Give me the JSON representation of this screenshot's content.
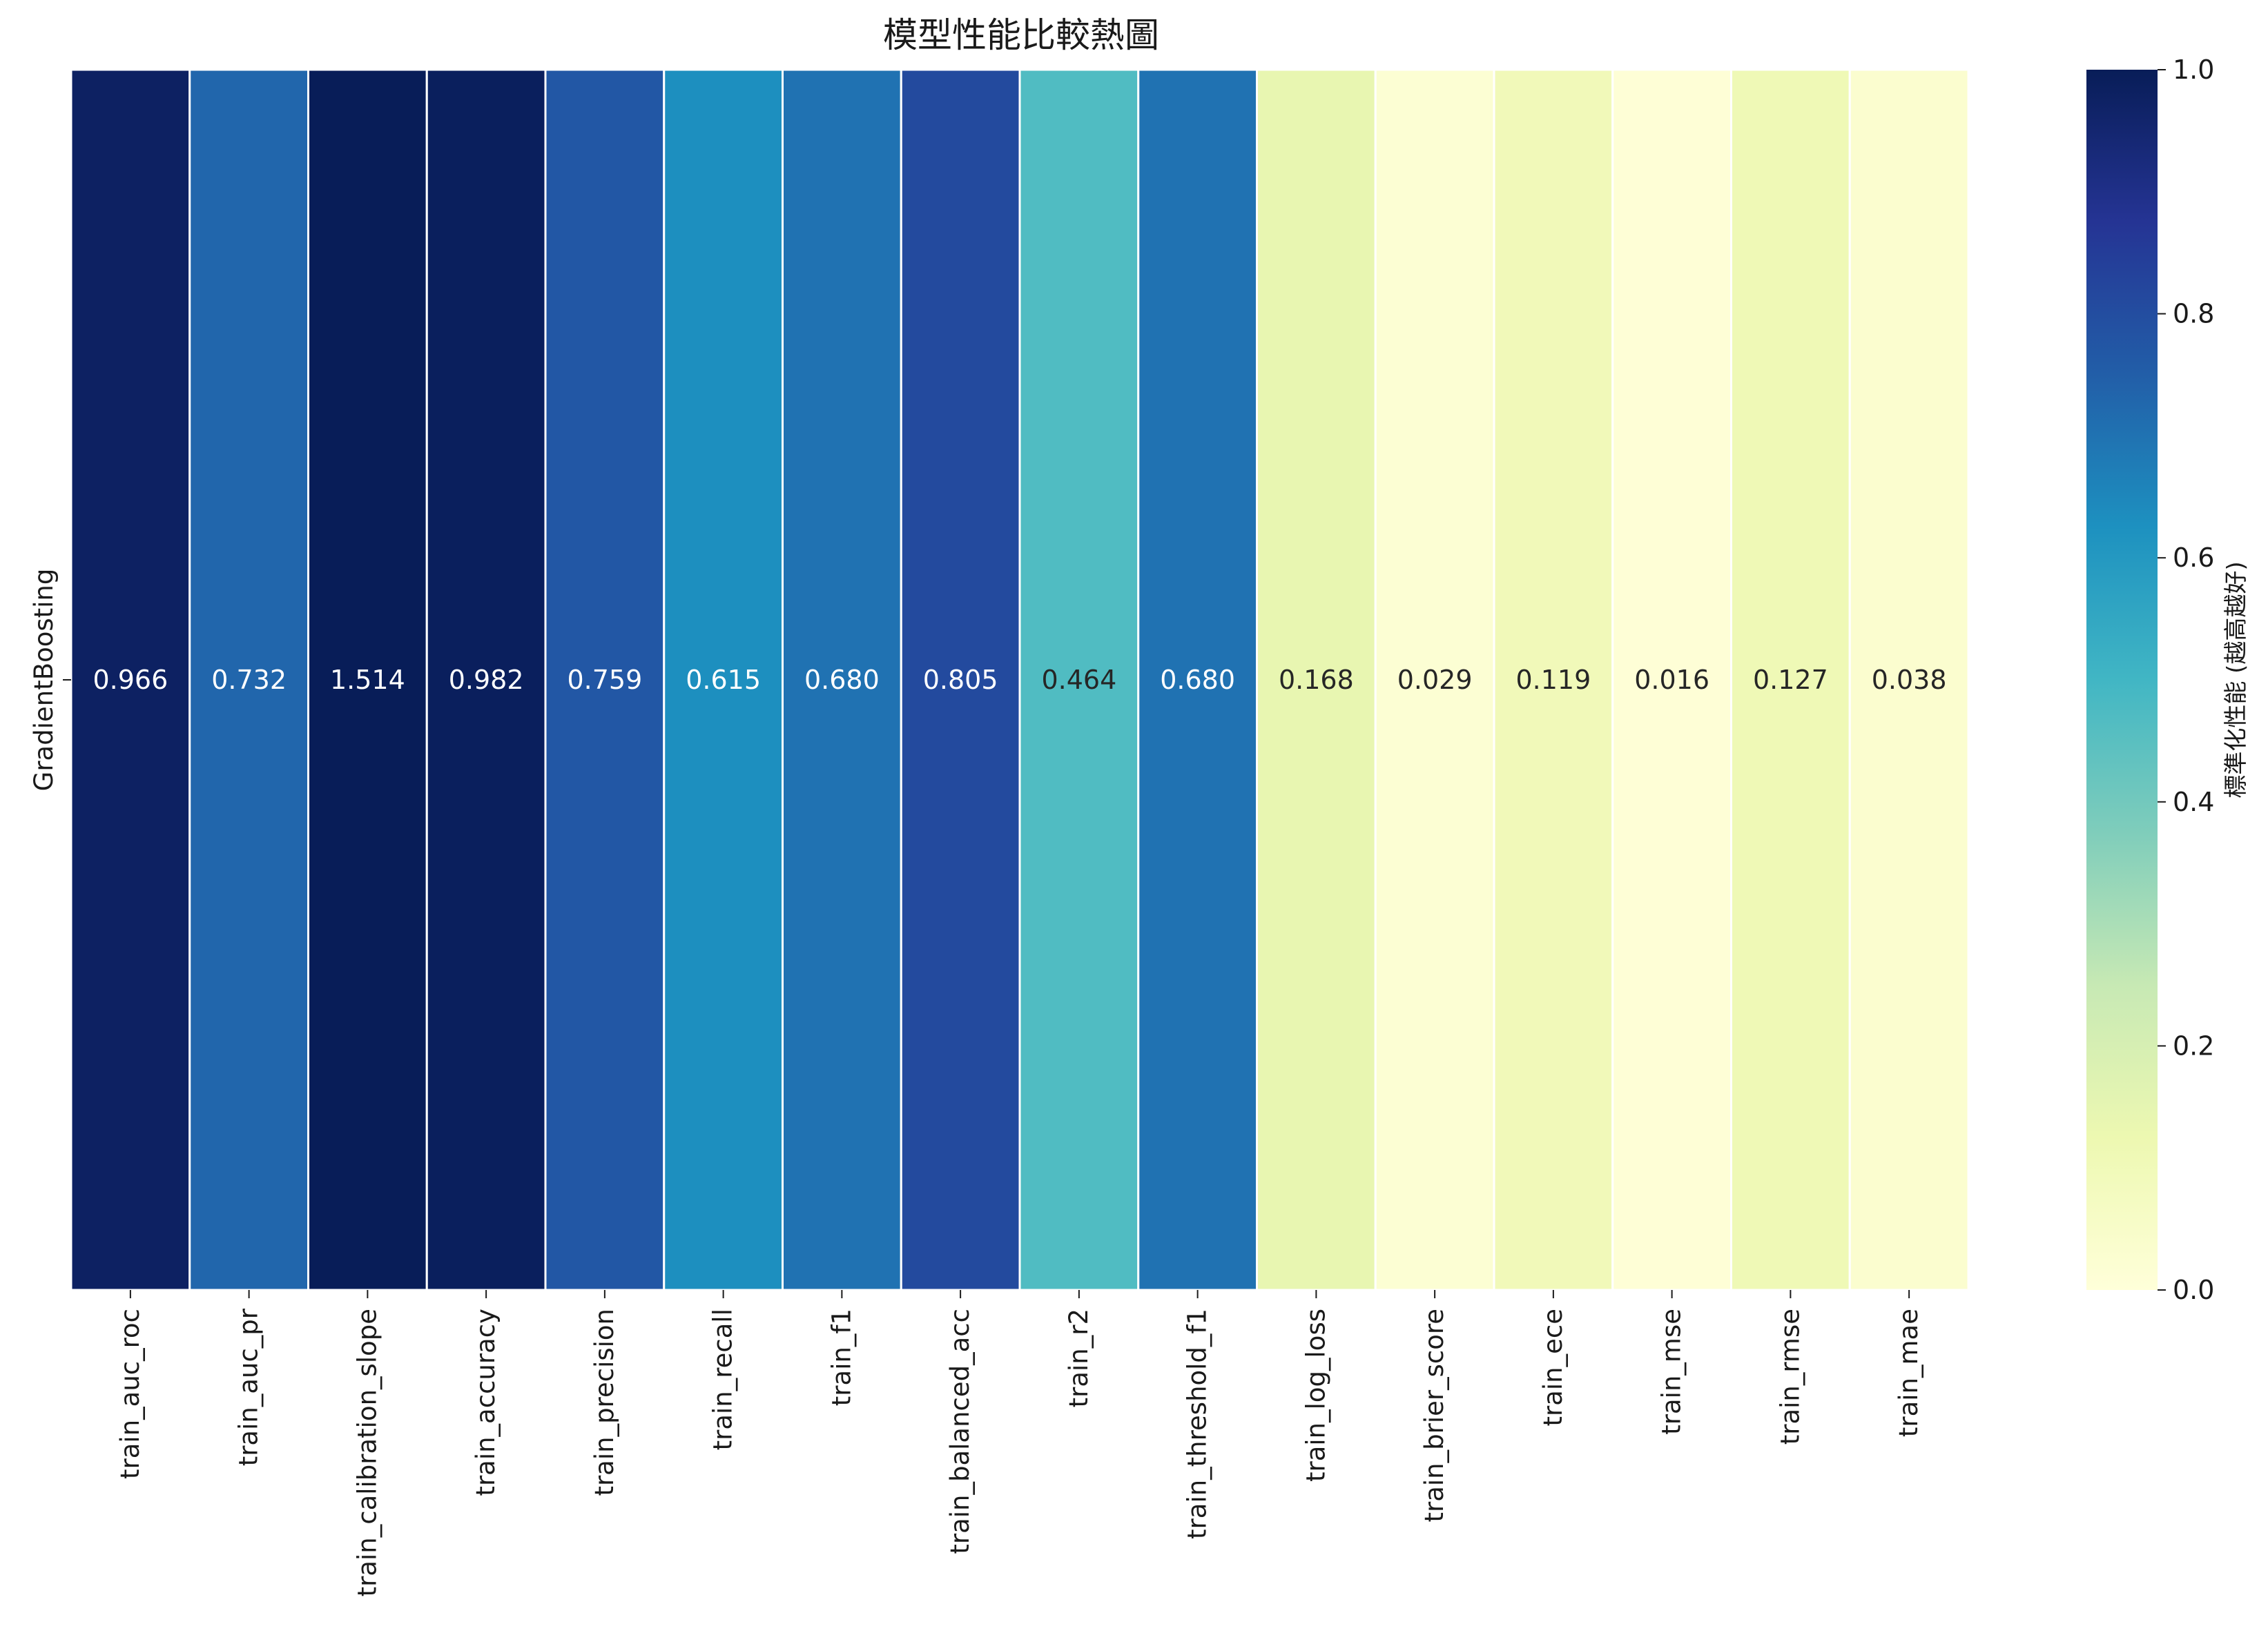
{
  "chart_data": {
    "type": "heatmap",
    "title": "模型性能比較熱圖",
    "rows": [
      "GradientBoosting"
    ],
    "columns": [
      "train_auc_roc",
      "train_auc_pr",
      "train_calibration_slope",
      "train_accuracy",
      "train_precision",
      "train_recall",
      "train_f1",
      "train_balanced_acc",
      "train_r2",
      "train_threshold_f1",
      "train_log_loss",
      "train_brier_score",
      "train_ece",
      "train_mse",
      "train_rmse",
      "train_mae"
    ],
    "values": [
      [
        0.966,
        0.732,
        1.514,
        0.982,
        0.759,
        0.615,
        0.68,
        0.805,
        0.464,
        0.68,
        0.168,
        0.029,
        0.119,
        0.016,
        0.127,
        0.038
      ]
    ],
    "labels": [
      [
        "0.966",
        "0.732",
        "1.514",
        "0.982",
        "0.759",
        "0.615",
        "0.680",
        "0.805",
        "0.464",
        "0.680",
        "0.168",
        "0.029",
        "0.119",
        "0.016",
        "0.127",
        "0.038"
      ]
    ],
    "normalized": [
      [
        0.98,
        0.73,
        1.0,
        0.99,
        0.77,
        0.63,
        0.7,
        0.81,
        0.47,
        0.7,
        0.14,
        0.02,
        0.1,
        0.01,
        0.11,
        0.03
      ]
    ],
    "colormap": "YlGnBu",
    "colorbar": {
      "label": "標準化性能 (越高越好)",
      "range": [
        0.0,
        1.0
      ],
      "ticks": [
        "0.0",
        "0.2",
        "0.4",
        "0.6",
        "0.8",
        "1.0"
      ]
    }
  }
}
